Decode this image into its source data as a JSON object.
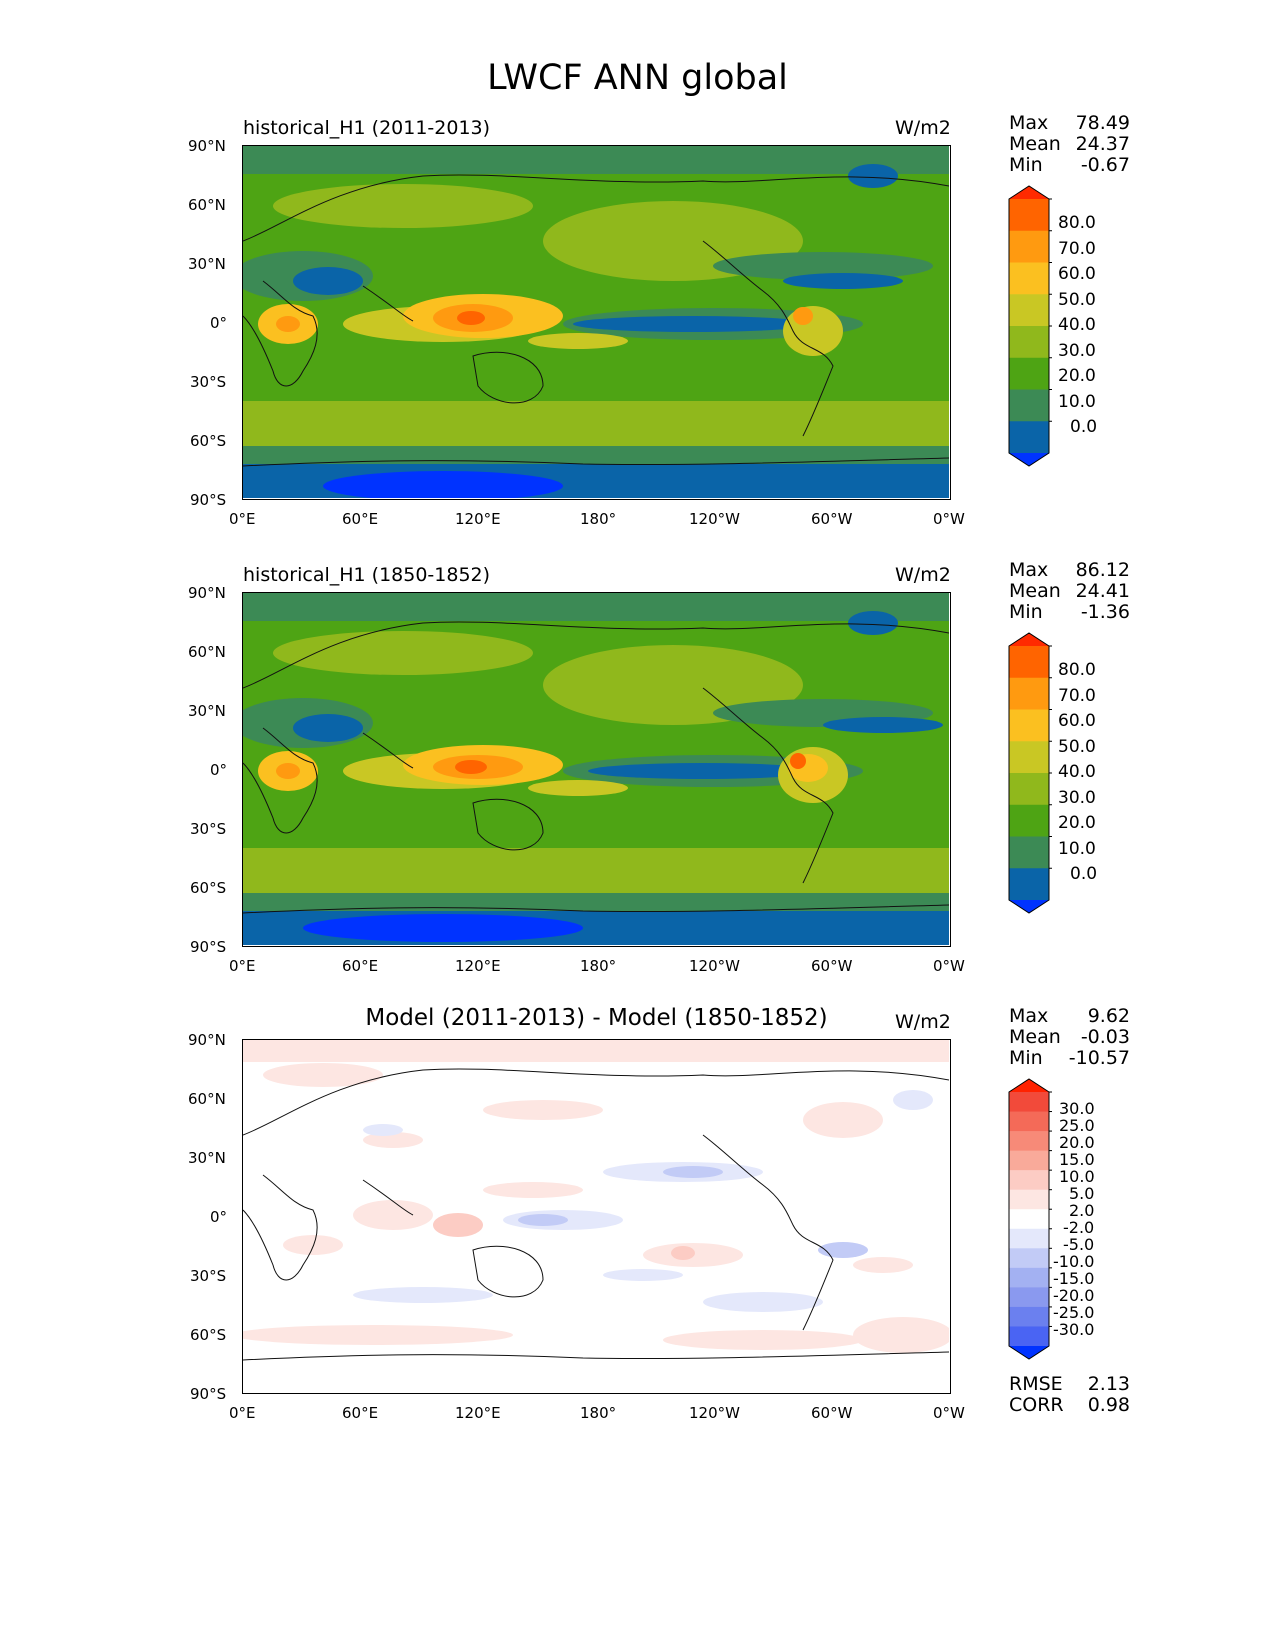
{
  "figure": {
    "title": "LWCF ANN global"
  },
  "axes_labels": {
    "lat": [
      "90°N",
      "60°N",
      "30°N",
      "0°",
      "30°S",
      "60°S",
      "90°S"
    ],
    "lon": [
      "0°E",
      "60°E",
      "120°E",
      "180°",
      "120°W",
      "60°W",
      "0°W"
    ]
  },
  "panels": [
    {
      "title": "historical_H1 (2011-2013)",
      "units": "W/m2",
      "stats": {
        "max_label": "Max",
        "max": "78.49",
        "mean_label": "Mean",
        "mean": "24.37",
        "min_label": "Min",
        "min": "-0.67"
      },
      "colorbar": {
        "labels": [
          "80.0",
          "70.0",
          "60.0",
          "50.0",
          "40.0",
          "30.0",
          "20.0",
          "10.0",
          "0.0"
        ],
        "colors": [
          "#ff2a00",
          "#ff6400",
          "#ff9a10",
          "#fbc020",
          "#c9c724",
          "#90b81c",
          "#4ea414",
          "#3c8a55",
          "#0a64a8",
          "#0033ff"
        ]
      }
    },
    {
      "title": "historical_H1 (1850-1852)",
      "units": "W/m2",
      "stats": {
        "max_label": "Max",
        "max": "86.12",
        "mean_label": "Mean",
        "mean": "24.41",
        "min_label": "Min",
        "min": "-1.36"
      },
      "colorbar": {
        "labels": [
          "80.0",
          "70.0",
          "60.0",
          "50.0",
          "40.0",
          "30.0",
          "20.0",
          "10.0",
          "0.0"
        ],
        "colors": [
          "#ff2a00",
          "#ff6400",
          "#ff9a10",
          "#fbc020",
          "#c9c724",
          "#90b81c",
          "#4ea414",
          "#3c8a55",
          "#0a64a8",
          "#0033ff"
        ]
      }
    },
    {
      "title": "Model (2011-2013) - Model (1850-1852)",
      "units": "W/m2",
      "stats": {
        "max_label": "Max",
        "max": "9.62",
        "mean_label": "Mean",
        "mean": "-0.03",
        "min_label": "Min",
        "min": "-10.57"
      },
      "colorbar": {
        "labels": [
          "30.0",
          "25.0",
          "20.0",
          "15.0",
          "10.0",
          "5.0",
          "2.0",
          "-2.0",
          "-5.0",
          "-10.0",
          "-15.0",
          "-20.0",
          "-25.0",
          "-30.0"
        ],
        "colors": [
          "#ff2200",
          "#f24a3a",
          "#f46a58",
          "#f78a78",
          "#f9aa9a",
          "#fcccc4",
          "#fde6e2",
          "#ffffff",
          "#e4e8fb",
          "#c2cbf6",
          "#a3b1f2",
          "#8a99ef",
          "#6b80ef",
          "#4a64f3",
          "#0033ff"
        ]
      },
      "rmse_label": "RMSE",
      "rmse": "2.13",
      "corr_label": "CORR",
      "corr": "0.98"
    }
  ],
  "chart_data": [
    {
      "type": "heatmap",
      "title": "historical_H1 (2011-2013)",
      "variable": "LWCF",
      "season": "ANN",
      "region": "global",
      "units": "W/m2",
      "xlim": [
        0,
        360
      ],
      "ylim": [
        -90,
        90
      ],
      "levels": [
        0,
        10,
        20,
        30,
        40,
        50,
        60,
        70,
        80
      ],
      "stats": {
        "max": 78.49,
        "mean": 24.37,
        "min": -0.67
      }
    },
    {
      "type": "heatmap",
      "title": "historical_H1 (1850-1852)",
      "variable": "LWCF",
      "season": "ANN",
      "region": "global",
      "units": "W/m2",
      "xlim": [
        0,
        360
      ],
      "ylim": [
        -90,
        90
      ],
      "levels": [
        0,
        10,
        20,
        30,
        40,
        50,
        60,
        70,
        80
      ],
      "stats": {
        "max": 86.12,
        "mean": 24.41,
        "min": -1.36
      }
    },
    {
      "type": "heatmap",
      "title": "Model (2011-2013) - Model (1850-1852)",
      "variable": "LWCF",
      "season": "ANN",
      "region": "global",
      "units": "W/m2",
      "xlim": [
        0,
        360
      ],
      "ylim": [
        -90,
        90
      ],
      "levels": [
        -30,
        -25,
        -20,
        -15,
        -10,
        -5,
        -2,
        2,
        5,
        10,
        15,
        20,
        25,
        30
      ],
      "stats": {
        "max": 9.62,
        "mean": -0.03,
        "min": -10.57,
        "rmse": 2.13,
        "corr": 0.98
      }
    }
  ]
}
